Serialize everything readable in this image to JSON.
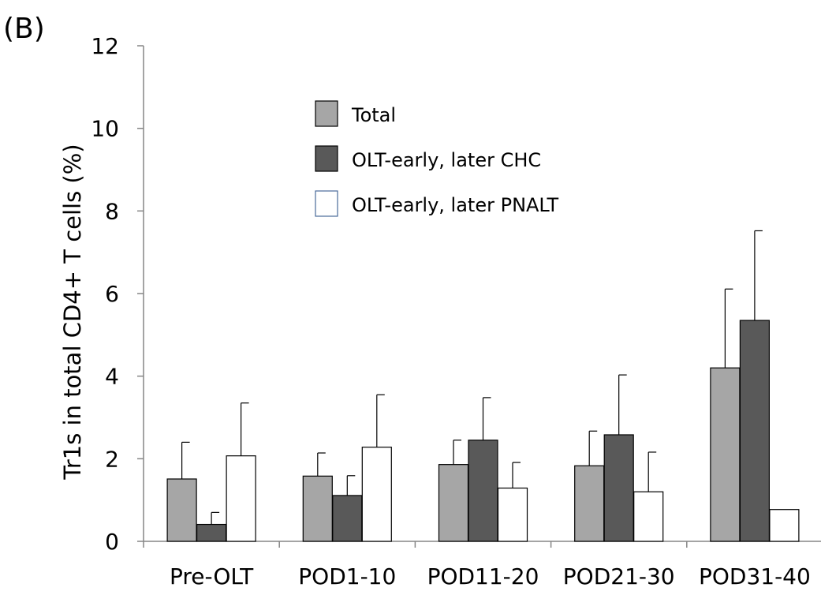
{
  "panel_label": "(B)",
  "chart_data": {
    "type": "bar",
    "title": "",
    "xlabel": "",
    "ylabel": "Tr1s in  total CD4+ T cells (%)",
    "ylim": [
      0,
      12
    ],
    "yticks": [
      0,
      2,
      4,
      6,
      8,
      10,
      12
    ],
    "grid": false,
    "legend_position": "top-center",
    "categories": [
      "Pre-OLT",
      "POD1-10",
      "POD11-20",
      "POD21-30",
      "POD31-40"
    ],
    "series": [
      {
        "name": "Total",
        "color": "#a6a6a6",
        "values": [
          1.51,
          1.58,
          1.86,
          1.83,
          4.2
        ],
        "error": [
          0.89,
          0.56,
          0.59,
          0.84,
          1.91
        ]
      },
      {
        "name": "OLT-early, later CHC",
        "color": "#595959",
        "values": [
          0.41,
          1.11,
          2.45,
          2.58,
          5.35
        ],
        "error": [
          0.29,
          0.48,
          1.03,
          1.45,
          2.17
        ]
      },
      {
        "name": "OLT-early, later PNALT",
        "color": "#ffffff",
        "values": [
          2.07,
          2.28,
          1.29,
          1.2,
          0.77
        ],
        "error": [
          1.28,
          1.27,
          0.62,
          0.96,
          0
        ]
      }
    ]
  }
}
